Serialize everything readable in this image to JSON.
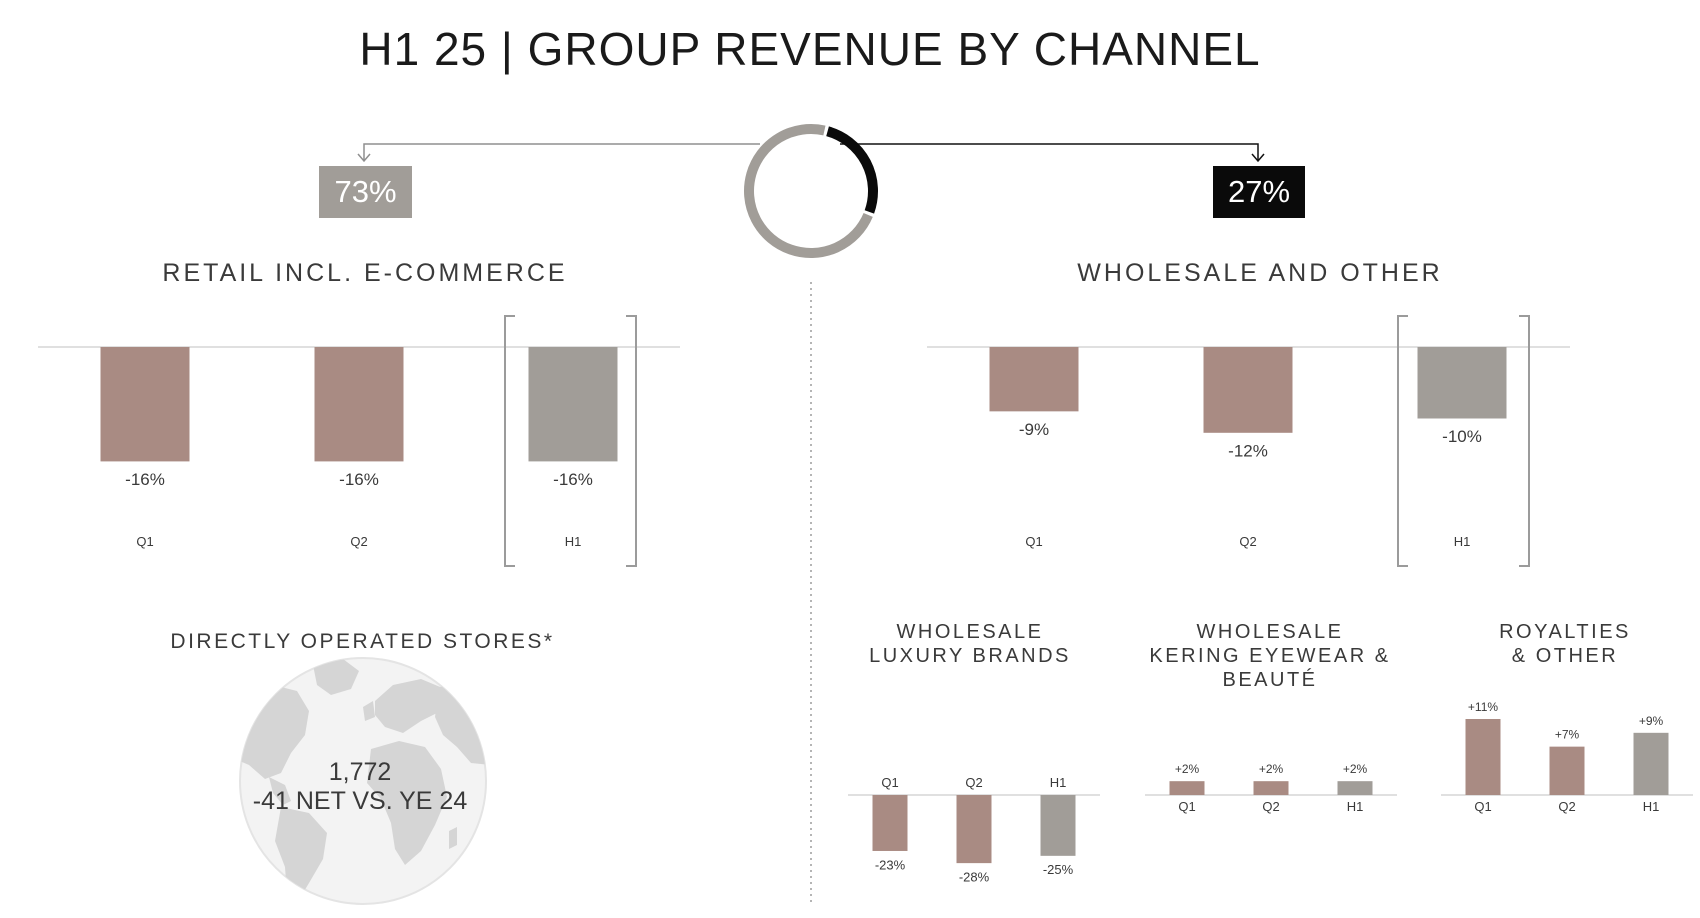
{
  "title": "H1 25 | GROUP REVENUE BY CHANNEL",
  "colors": {
    "retail": "#a98b83",
    "wholesale": "#a98b83",
    "total": "#a19d98",
    "retail_share": "#a19d98",
    "wholesale_share": "#0a0a0a",
    "axis": "#d6d6d6",
    "bracket": "#9b9b9b",
    "globe": "#d9d9d9"
  },
  "retail": {
    "share": "73%",
    "title": "RETAIL INCL. E-COMMERCE"
  },
  "wholesale": {
    "share": "27%",
    "title": "WHOLESALE AND OTHER"
  },
  "stores": {
    "title": "DIRECTLY OPERATED STORES*",
    "count": "1,772",
    "change": "-41 NET VS. YE 24"
  },
  "subsections": {
    "luxury": [
      "WHOLESALE",
      "LUXURY BRANDS"
    ],
    "eyewear": [
      "WHOLESALE",
      "KERING EYEWEAR &",
      "BEAUTÉ"
    ],
    "royalties": [
      "ROYALTIES",
      "& OTHER"
    ]
  },
  "chart_data": [
    {
      "id": "donut",
      "type": "pie",
      "categories": [
        "Retail incl. e-commerce",
        "Wholesale and other"
      ],
      "values": [
        73,
        27
      ]
    },
    {
      "id": "retail",
      "type": "bar",
      "categories": [
        "Q1",
        "Q2",
        "H1"
      ],
      "values": [
        -16,
        -16,
        -16
      ],
      "labels": [
        "-16%",
        "-16%",
        "-16%"
      ],
      "ylim": [
        -20,
        0
      ]
    },
    {
      "id": "wholesale",
      "type": "bar",
      "categories": [
        "Q1",
        "Q2",
        "H1"
      ],
      "values": [
        -9,
        -12,
        -10
      ],
      "labels": [
        "-9%",
        "-12%",
        "-10%"
      ],
      "ylim": [
        -20,
        0
      ]
    },
    {
      "id": "luxury",
      "type": "bar",
      "categories": [
        "Q1",
        "Q2",
        "H1"
      ],
      "values": [
        -23,
        -28,
        -25
      ],
      "labels": [
        "-23%",
        "-28%",
        "-25%"
      ],
      "ylim": [
        -30,
        0
      ]
    },
    {
      "id": "eyewear",
      "type": "bar",
      "categories": [
        "Q1",
        "Q2",
        "H1"
      ],
      "values": [
        2,
        2,
        2
      ],
      "labels": [
        "+2%",
        "+2%",
        "+2%"
      ],
      "ylim": [
        0,
        11
      ]
    },
    {
      "id": "royalties",
      "type": "bar",
      "categories": [
        "Q1",
        "Q2",
        "H1"
      ],
      "values": [
        11,
        7,
        9
      ],
      "labels": [
        "+11%",
        "+7%",
        "+9%"
      ],
      "ylim": [
        0,
        11
      ]
    }
  ]
}
